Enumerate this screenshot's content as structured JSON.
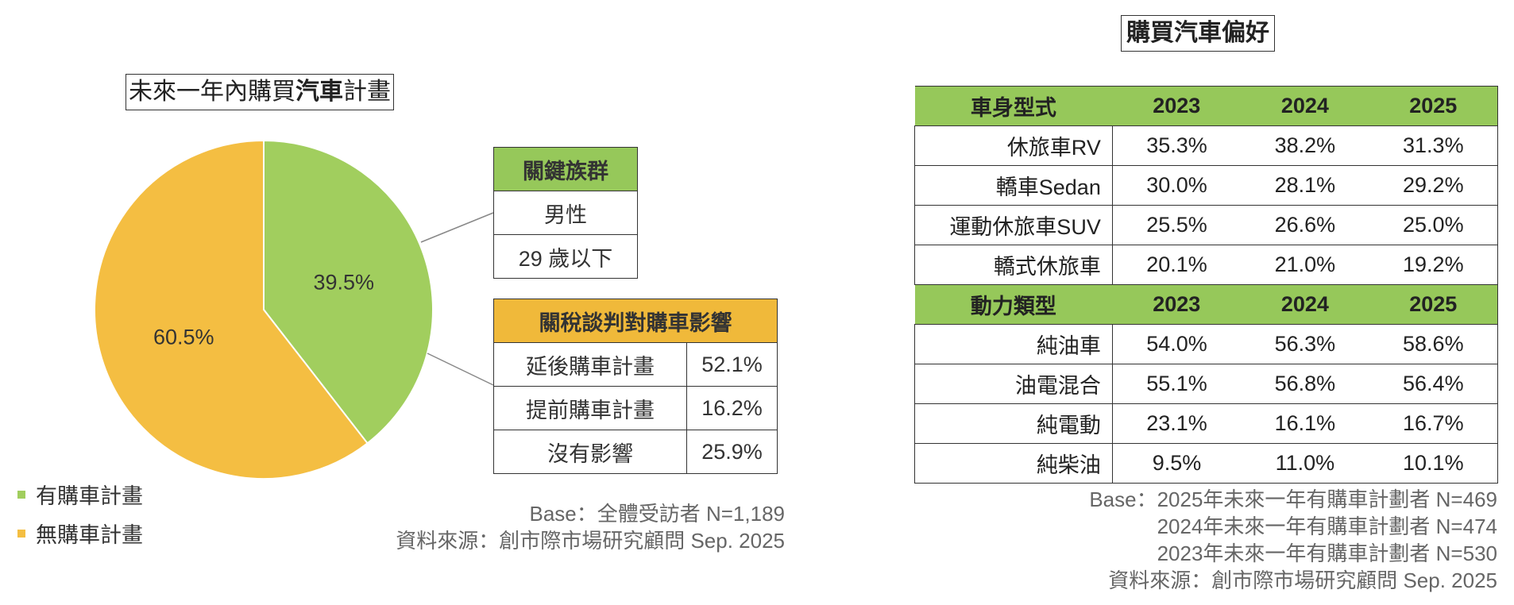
{
  "chart_data": {
    "type": "pie",
    "title": "未來一年內購買汽車計畫",
    "title_bold_part": "汽車",
    "slices": [
      {
        "name": "有購車計畫",
        "value": 39.5,
        "label": "39.5%",
        "color": "#a1ce5e"
      },
      {
        "name": "無購車計畫",
        "value": 60.5,
        "label": "60.5%",
        "color": "#f4be42"
      }
    ],
    "legend_position": "bottom-left"
  },
  "key_group": {
    "header": "關鍵族群",
    "rows": [
      "男性",
      "29 歲以下"
    ]
  },
  "tariff": {
    "header": "關稅談判對購車影響",
    "rows": [
      {
        "label": "延後購車計畫",
        "value": "52.1%"
      },
      {
        "label": "提前購車計畫",
        "value": "16.2%"
      },
      {
        "label": "沒有影響",
        "value": "25.9%"
      }
    ]
  },
  "left_notes": {
    "base": "Base：全體受訪者 N=1,189",
    "source": "資料來源：創市際市場研究顧問 Sep. 2025"
  },
  "preference": {
    "title": "購買汽車偏好",
    "sections": [
      {
        "header": "車身型式",
        "years": [
          "2023",
          "2024",
          "2025"
        ],
        "rows": [
          {
            "label": "休旅車RV",
            "values": [
              "35.3%",
              "38.2%",
              "31.3%"
            ]
          },
          {
            "label": "轎車Sedan",
            "values": [
              "30.0%",
              "28.1%",
              "29.2%"
            ]
          },
          {
            "label": "運動休旅車SUV",
            "values": [
              "25.5%",
              "26.6%",
              "25.0%"
            ]
          },
          {
            "label": "轎式休旅車",
            "values": [
              "20.1%",
              "21.0%",
              "19.2%"
            ]
          }
        ]
      },
      {
        "header": "動力類型",
        "years": [
          "2023",
          "2024",
          "2025"
        ],
        "rows": [
          {
            "label": "純油車",
            "values": [
              "54.0%",
              "56.3%",
              "58.6%"
            ]
          },
          {
            "label": "油電混合",
            "values": [
              "55.1%",
              "56.8%",
              "56.4%"
            ]
          },
          {
            "label": "純電動",
            "values": [
              "23.1%",
              "16.1%",
              "16.7%"
            ]
          },
          {
            "label": "純柴油",
            "values": [
              "9.5%",
              "11.0%",
              "10.1%"
            ]
          }
        ]
      }
    ]
  },
  "right_notes": [
    "Base：2025年未來一年有購車計劃者 N=469",
    "2024年未來一年有購車計劃者 N=474",
    "2023年未來一年有購車計劃者 N=530",
    "資料來源：創市際市場研究顧問 Sep. 2025"
  ]
}
